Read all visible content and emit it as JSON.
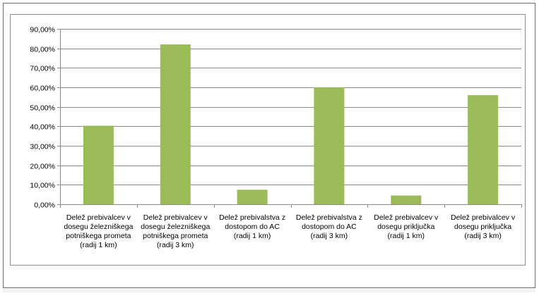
{
  "chart_data": {
    "type": "bar",
    "title": "",
    "xlabel": "",
    "ylabel": "",
    "ylim": [
      0,
      90
    ],
    "y_ticks": [
      0,
      10,
      20,
      30,
      40,
      50,
      60,
      70,
      80,
      90
    ],
    "y_tick_labels": [
      "0,00%",
      "10,00%",
      "20,00%",
      "30,00%",
      "40,00%",
      "50,00%",
      "60,00%",
      "70,00%",
      "80,00%",
      "90,00%"
    ],
    "categories": [
      [
        "Delež prebivalcev v",
        "dosegu železniškega",
        "potniškega prometa",
        "(radij 1 km)"
      ],
      [
        "Delež prebivalcev v",
        "dosegu železniškega",
        "potniškega prometa",
        "(radij 3 km)"
      ],
      [
        "Delež prebivalstva z",
        "dostopom do AC",
        "(radij 1 km)"
      ],
      [
        "Delež prebivalstva z",
        "dostopom do AC",
        "(radij 3 km)"
      ],
      [
        "Delež prebivalcev v",
        "dosegu priključka",
        "(radij 1 km)"
      ],
      [
        "Delež prebivalcev v",
        "dosegu priključka",
        "(radij 3 km)"
      ]
    ],
    "values": [
      40.3,
      82.0,
      7.5,
      60.0,
      4.5,
      56.0
    ],
    "grid": true,
    "legend": "none",
    "bar_color": "#9bbb59"
  }
}
